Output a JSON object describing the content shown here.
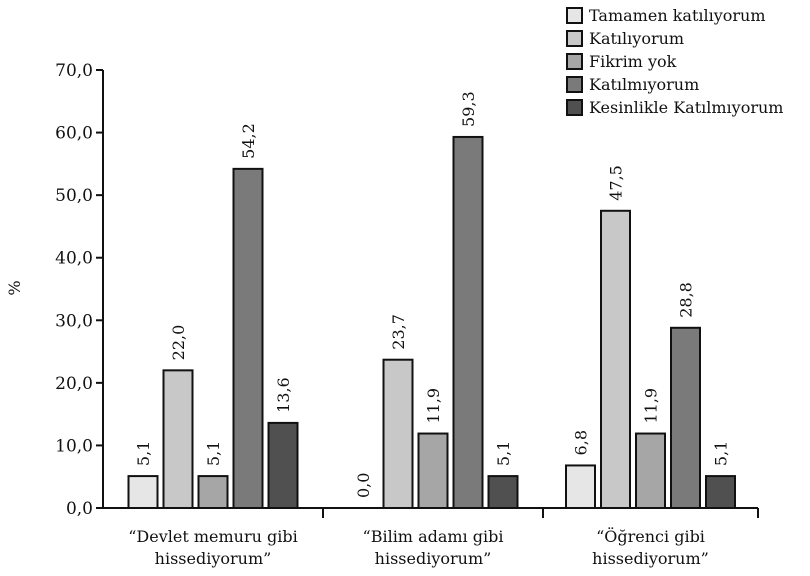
{
  "chart_data": {
    "type": "bar",
    "ylabel": "%",
    "xlabel": "",
    "ylim": [
      0,
      70
    ],
    "y_ticks": [
      "0,0",
      "10,0",
      "20,0",
      "30,0",
      "40,0",
      "50,0",
      "60,0",
      "70,0"
    ],
    "grid": false,
    "legend_position": "top-right",
    "categories": [
      [
        "“Devlet memuru gibi",
        "hissediyorum”"
      ],
      [
        "“Bilim adamı gibi",
        "hissediyorum”"
      ],
      [
        "“Öğrenci gibi",
        "hissediyorum”"
      ]
    ],
    "series": [
      {
        "name": "Tamamen katılıyorum",
        "color": "#e6e6e6",
        "values": [
          5.1,
          0.0,
          6.8
        ],
        "labels": [
          "5,1",
          "0,0",
          "6,8"
        ]
      },
      {
        "name": "Katılıyorum",
        "color": "#c8c8c8",
        "values": [
          22.0,
          23.7,
          47.5
        ],
        "labels": [
          "22,0",
          "23,7",
          "47,5"
        ]
      },
      {
        "name": "Fikrim yok",
        "color": "#a6a6a6",
        "values": [
          5.1,
          11.9,
          11.9
        ],
        "labels": [
          "5,1",
          "11,9",
          "11,9"
        ]
      },
      {
        "name": "Katılmıyorum",
        "color": "#7a7a7a",
        "values": [
          54.2,
          59.3,
          28.8
        ],
        "labels": [
          "54,2",
          "59,3",
          "28,8"
        ]
      },
      {
        "name": "Kesinlikle Katılmıyorum",
        "color": "#505050",
        "values": [
          13.6,
          5.1,
          5.1
        ],
        "labels": [
          "13,6",
          "5,1",
          "5,1"
        ]
      }
    ]
  }
}
